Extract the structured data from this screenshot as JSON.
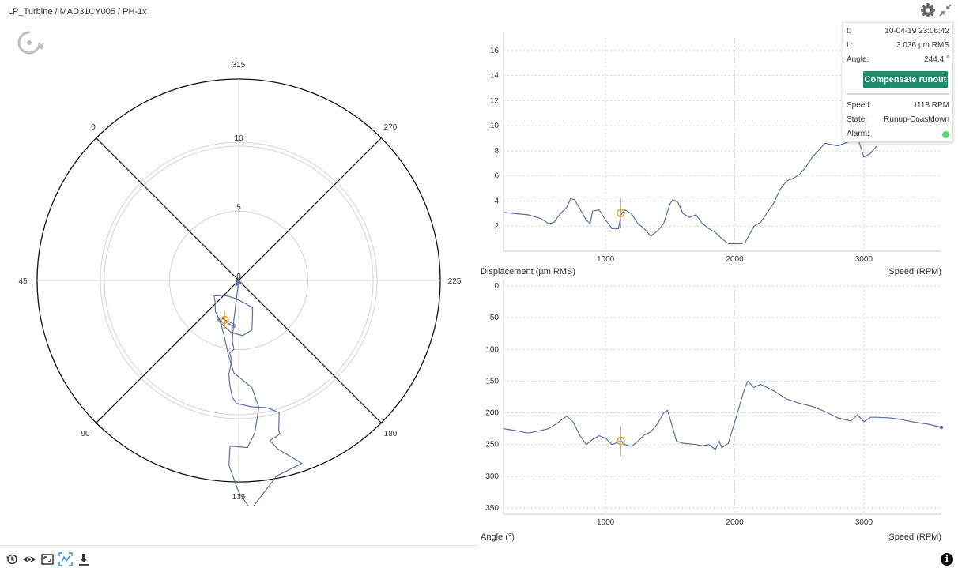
{
  "breadcrumb": "LP_Turbine / MAD31CY005 / PH-1x",
  "icons": [
    "rotate-icon",
    "gear-icon",
    "compress-icon",
    "history-icon",
    "eye-icon",
    "aspect-icon",
    "fit-icon",
    "download-icon",
    "info-icon"
  ],
  "info": {
    "t_label": "t:",
    "t_value": "10-04-19 23:06:42",
    "l_label": "L:",
    "l_value": "3.036 µm RMS",
    "angle_label": "Angle:",
    "angle_value": "244.4 °",
    "button_label": "Compensate runout",
    "speed_label": "Speed:",
    "speed_value": "1118 RPM",
    "state_label": "State:",
    "state_value": "Runup-Coastdown",
    "alarm_label": "Alarm:",
    "alarm_color": "#5cd36b"
  },
  "colors": {
    "trace": "#5b6fa3",
    "cursor": "#e8a33a",
    "button": "#1f8a6a"
  },
  "chart_data": [
    {
      "type": "scatter",
      "subtype": "polar",
      "rings": [
        5,
        10
      ],
      "ring_labels": [
        "0",
        "5",
        "10"
      ],
      "angle_labels": [
        "0",
        "315",
        "270",
        "225",
        "180",
        "135",
        "90",
        "45"
      ],
      "series": [
        {
          "points": [
            [
              0.2,
              232
            ],
            [
              1.5,
              232
            ],
            [
              3.0,
              232
            ],
            [
              4.4,
              231
            ],
            [
              5.0,
              229
            ],
            [
              5.3,
              232
            ],
            [
              5.8,
              230
            ],
            [
              6.8,
              231
            ],
            [
              7.5,
              230
            ],
            [
              8.0,
              229
            ],
            [
              8.5,
              228
            ],
            [
              8.9,
              226
            ],
            [
              9.2,
              219
            ],
            [
              9.4,
              213
            ],
            [
              9.6,
              211
            ],
            [
              10.0,
              208
            ],
            [
              11.2,
              210
            ],
            [
              11.5,
              210
            ],
            [
              11.8,
              214
            ],
            [
              12.5,
              212
            ],
            [
              13.7,
              207
            ],
            [
              14.0,
              206
            ],
            [
              14.4,
              214
            ],
            [
              15.4,
              218
            ],
            [
              16.6,
              222
            ],
            [
              15.3,
              225
            ],
            [
              13.4,
              228
            ],
            [
              12.0,
              228
            ],
            [
              12.1,
              222
            ],
            [
              11.1,
              219
            ],
            [
              9.3,
              216
            ],
            [
              7.8,
              218
            ],
            [
              6.7,
              228
            ],
            [
              5.4,
              233
            ],
            [
              4.1,
              240
            ],
            [
              3.2,
              250
            ],
            [
              2.8,
              262
            ],
            [
              2.3,
              273
            ],
            [
              2.1,
              283
            ],
            [
              1.5,
              269
            ],
            [
              1.3,
              242
            ],
            [
              1.6,
              214
            ],
            [
              2.2,
              198
            ],
            [
              2.9,
              205
            ],
            [
              3.7,
              210
            ],
            [
              4.0,
              221
            ],
            [
              3.8,
              233
            ],
            [
              3.4,
              246
            ],
            [
              3.2,
              254
            ],
            [
              3.0,
              247
            ],
            [
              3.2,
              230
            ],
            [
              3.4,
              230
            ],
            [
              3.1,
              244
            ]
          ]
        }
      ],
      "cursor": {
        "L": 3.036,
        "angle": 244.4
      }
    },
    {
      "type": "line",
      "xlabel": "Speed (RPM)",
      "ylabel": "Displacement (µm RMS)",
      "xlim": [
        210,
        3600
      ],
      "ylim": [
        0,
        17
      ],
      "x_ticks": [
        1000,
        2000,
        3000
      ],
      "y_ticks": [
        2,
        4,
        6,
        8,
        10,
        12,
        14,
        16
      ],
      "x": [
        210,
        300,
        400,
        500,
        560,
        600,
        650,
        700,
        730,
        760,
        800,
        850,
        880,
        900,
        950,
        1000,
        1050,
        1100,
        1120,
        1150,
        1200,
        1250,
        1300,
        1350,
        1400,
        1450,
        1500,
        1520,
        1560,
        1600,
        1650,
        1700,
        1750,
        1800,
        1850,
        1900,
        1950,
        1980,
        2000,
        2050,
        2080,
        2150,
        2200,
        2300,
        2350,
        2400,
        2450,
        2500,
        2550,
        2600,
        2700,
        2800,
        2900,
        2950,
        3000,
        3050,
        3100
      ],
      "y": [
        3.1,
        3.0,
        2.9,
        2.6,
        2.2,
        2.3,
        3.0,
        3.5,
        4.2,
        4.1,
        3.4,
        2.5,
        2.2,
        3.2,
        3.3,
        2.5,
        1.8,
        1.8,
        2.9,
        3.3,
        3.0,
        2.2,
        1.8,
        1.2,
        1.6,
        2.2,
        3.8,
        4.1,
        3.9,
        3.0,
        2.7,
        2.9,
        2.2,
        1.8,
        1.5,
        1.0,
        0.6,
        0.6,
        0.6,
        0.6,
        0.7,
        2.0,
        2.3,
        3.8,
        4.9,
        5.6,
        5.8,
        6.1,
        6.7,
        7.5,
        8.6,
        8.4,
        8.8,
        9.1,
        7.5,
        7.8,
        8.4
      ],
      "cursor": {
        "x": 1118,
        "y": 3.036
      }
    },
    {
      "type": "line",
      "xlabel": "Speed (RPM)",
      "ylabel": "Angle (°)",
      "xlim": [
        210,
        3600
      ],
      "ylim": [
        0,
        360
      ],
      "x_ticks": [
        1000,
        2000,
        3000
      ],
      "y_ticks": [
        0,
        50,
        100,
        150,
        200,
        250,
        300,
        350
      ],
      "x": [
        210,
        300,
        400,
        500,
        560,
        600,
        700,
        750,
        800,
        850,
        900,
        950,
        1000,
        1050,
        1100,
        1118,
        1150,
        1200,
        1250,
        1300,
        1350,
        1400,
        1450,
        1480,
        1500,
        1550,
        1600,
        1700,
        1750,
        1800,
        1850,
        1880,
        1900,
        1950,
        2000,
        2050,
        2080,
        2100,
        2150,
        2200,
        2250,
        2300,
        2400,
        2500,
        2600,
        2700,
        2800,
        2900,
        2950,
        3000,
        3050,
        3100,
        3200,
        3300,
        3400,
        3500,
        3600
      ],
      "y": [
        225,
        228,
        232,
        228,
        225,
        220,
        205,
        215,
        235,
        250,
        242,
        236,
        240,
        250,
        246,
        244,
        250,
        253,
        245,
        235,
        230,
        218,
        200,
        196,
        210,
        245,
        248,
        250,
        252,
        250,
        258,
        245,
        255,
        248,
        215,
        180,
        160,
        150,
        160,
        155,
        160,
        165,
        178,
        185,
        190,
        198,
        208,
        213,
        203,
        214,
        207,
        207,
        208,
        211,
        215,
        218,
        223
      ],
      "cursor": {
        "x": 1118,
        "y": 244.4
      }
    }
  ]
}
